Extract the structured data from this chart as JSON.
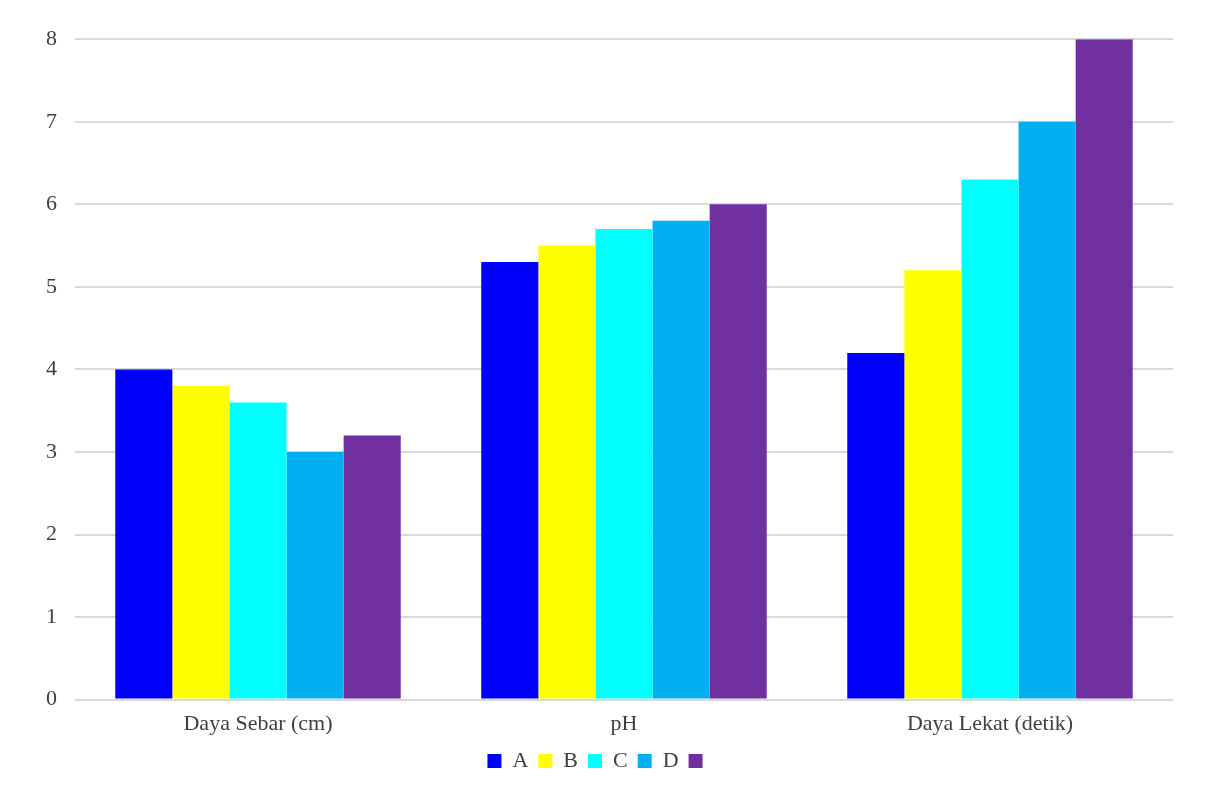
{
  "chart_data": {
    "type": "bar",
    "categories": [
      "Daya Sebar (cm)",
      "pH",
      "Daya Lekat (detik)"
    ],
    "series": [
      {
        "name": "A",
        "color": "#0000ff",
        "values": [
          4.0,
          5.3,
          4.2
        ]
      },
      {
        "name": "B",
        "color": "#ffff00",
        "values": [
          3.8,
          5.5,
          5.2
        ]
      },
      {
        "name": "C",
        "color": "#00ffff",
        "values": [
          3.6,
          5.7,
          6.3
        ]
      },
      {
        "name": "D",
        "color": "#00b0f0",
        "values": [
          3.0,
          5.8,
          7.0
        ]
      },
      {
        "color": "#7030a0",
        "values": [
          3.2,
          6.0,
          8.0
        ]
      }
    ],
    "ylim": [
      0,
      8
    ],
    "yticks": [
      0,
      1,
      2,
      3,
      4,
      5,
      6,
      7,
      8
    ],
    "grid": "y",
    "legend": "bottom"
  }
}
